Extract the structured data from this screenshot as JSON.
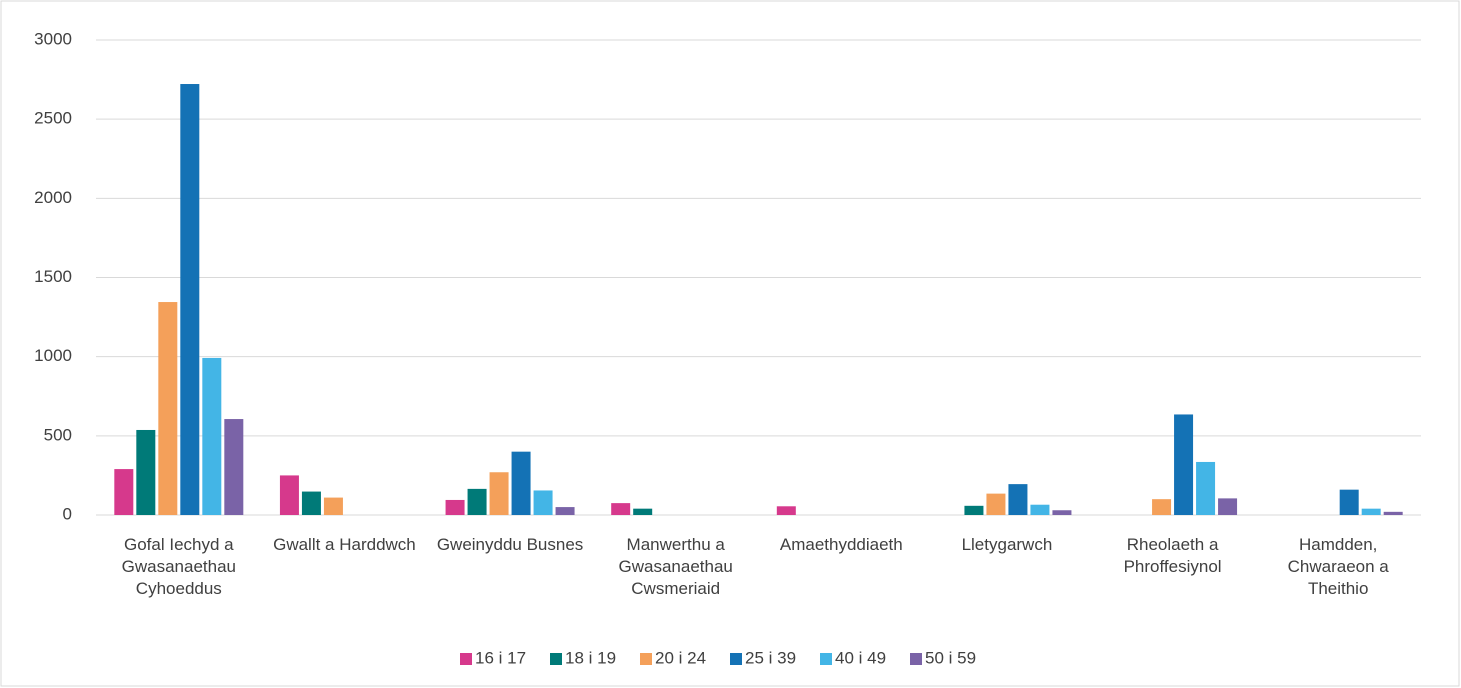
{
  "chart_data": {
    "type": "bar",
    "categories": [
      "Gofal Iechyd a Gwasanaethau Cyhoeddus",
      "Gwallt a Harddwch",
      "Gweinyddu Busnes",
      "Manwerthu a Gwasanaethau Cwsmeriaid",
      "Amaethyddiaeth",
      "Lletygarwch",
      "Rheolaeth a Phroffesiynol",
      "Hamdden, Chwaraeon a Theithio"
    ],
    "series": [
      {
        "name": "16 i 17",
        "color": "#d6398c",
        "values": [
          290,
          250,
          95,
          75,
          55,
          0,
          0,
          0
        ]
      },
      {
        "name": "18 i 19",
        "color": "#007a78",
        "values": [
          537,
          148,
          165,
          40,
          0,
          58,
          0,
          0
        ]
      },
      {
        "name": "20 i 24",
        "color": "#f4a05a",
        "values": [
          1345,
          110,
          270,
          0,
          0,
          135,
          100,
          0
        ]
      },
      {
        "name": "25 i 39",
        "color": "#1472b5",
        "values": [
          2722,
          0,
          400,
          0,
          0,
          195,
          635,
          160
        ]
      },
      {
        "name": "40 i 49",
        "color": "#43b5e6",
        "values": [
          992,
          0,
          155,
          0,
          0,
          65,
          335,
          40
        ]
      },
      {
        "name": "50 i 59",
        "color": "#7a63a7",
        "values": [
          606,
          0,
          50,
          0,
          0,
          30,
          105,
          20
        ]
      }
    ],
    "ylim": [
      0,
      3000
    ],
    "yticks": [
      0,
      500,
      1000,
      1500,
      2000,
      2500,
      3000
    ],
    "grid": true,
    "legend": "bottom"
  }
}
